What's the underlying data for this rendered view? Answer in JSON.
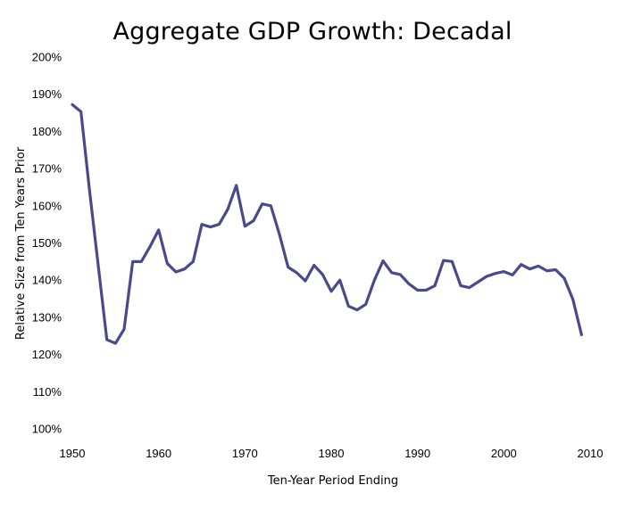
{
  "chart_data": {
    "type": "line",
    "title": "Aggregate GDP Growth: Decadal",
    "xlabel": "Ten-Year Period Ending",
    "ylabel": "Relative Size from Ten Years Prior",
    "xlim": [
      1950,
      2010
    ],
    "ylim": [
      100,
      200
    ],
    "x_ticks": [
      1950,
      1960,
      1970,
      1980,
      1990,
      2000,
      2010
    ],
    "y_ticks": [
      100,
      110,
      120,
      130,
      140,
      150,
      160,
      170,
      180,
      190,
      200
    ],
    "y_tick_labels": [
      "100%",
      "110%",
      "120%",
      "130%",
      "140%",
      "150%",
      "160%",
      "170%",
      "180%",
      "190%",
      "200%"
    ],
    "x_tick_labels": [
      "1950",
      "1960",
      "1970",
      "1980",
      "1990",
      "2000",
      "2010"
    ],
    "grid": false,
    "line_color": "#4a4a8a",
    "series": [
      {
        "x": [
          1950,
          1951,
          1952,
          1953,
          1954,
          1955,
          1956,
          1957,
          1958,
          1959,
          1960,
          1961,
          1962,
          1963,
          1964,
          1965,
          1966,
          1967,
          1968,
          1969,
          1970,
          1971,
          1972,
          1973,
          1974,
          1975,
          1976,
          1977,
          1978,
          1979,
          1980,
          1981,
          1982,
          1983,
          1984,
          1985,
          1986,
          1987,
          1988,
          1989,
          1990,
          1991,
          1992,
          1993,
          1994,
          1995,
          1996,
          1997,
          1998,
          1999,
          2000,
          2001,
          2002,
          2003,
          2004,
          2005,
          2006,
          2007,
          2008,
          2009
        ],
        "values": [
          187.2,
          185.3,
          164.0,
          144.0,
          124.0,
          123.0,
          126.8,
          145.0,
          145.0,
          149.0,
          153.5,
          144.5,
          142.2,
          143.0,
          145.0,
          155.0,
          154.3,
          155.0,
          159.0,
          165.5,
          154.5,
          156.0,
          160.5,
          160.0,
          152.3,
          143.5,
          142.0,
          139.8,
          144.0,
          141.5,
          137.0,
          140.0,
          133.0,
          132.0,
          133.5,
          140.0,
          145.2,
          142.0,
          141.5,
          139.0,
          137.3,
          137.3,
          138.5,
          145.3,
          145.0,
          138.5,
          138.0,
          139.5,
          141.0,
          141.8,
          142.3,
          141.4,
          144.2,
          143.0,
          143.8,
          142.5,
          142.8,
          140.5,
          134.8,
          125.3
        ]
      }
    ]
  }
}
